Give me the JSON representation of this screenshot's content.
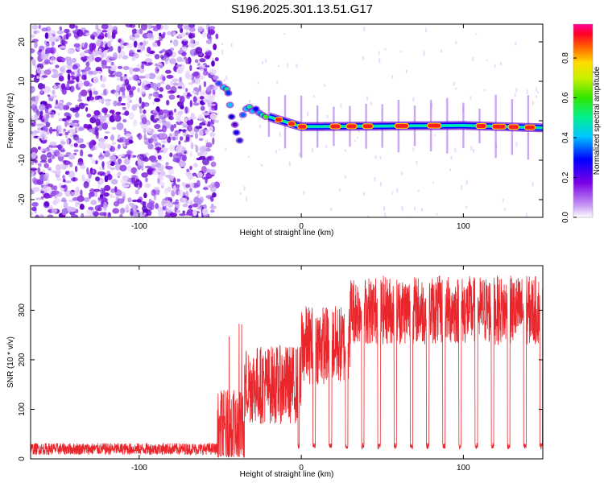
{
  "title": "S196.2025.301.13.51.G17",
  "chart_data": [
    {
      "type": "heatmap",
      "name": "spectrogram",
      "xlabel": "Height of straight line (km)",
      "ylabel": "Frequency (Hz)",
      "xlim": [
        -167,
        149
      ],
      "ylim": [
        -24.5,
        24.5
      ],
      "xticks": [
        -100,
        0,
        100
      ],
      "yticks": [
        -20,
        -10,
        0,
        10,
        20
      ],
      "xtick_labels": [
        "-100",
        "0",
        "100"
      ],
      "ytick_labels": [
        "-20",
        "-10",
        "0",
        "10",
        "20"
      ],
      "colorbar": {
        "label": "Normalized spectral amplitude",
        "range": [
          0,
          0.97
        ],
        "ticks": [
          0.0,
          0.2,
          0.4,
          0.6,
          0.8
        ],
        "tick_labels": [
          "0.0",
          "0.2",
          "0.4",
          "0.6",
          "0.8"
        ],
        "colormap": "rainbow (white-violet-blue-cyan-green-yellow-red-magenta)"
      },
      "features": {
        "noise_region_x": [
          -167,
          -52
        ],
        "transition_x": [
          -52,
          -20
        ],
        "transition_freq_start": 9,
        "transition_freq_end": 1,
        "line_x": [
          -20,
          149
        ],
        "line_freq": [
          [
            -20,
            1
          ],
          [
            0,
            -1.5
          ],
          [
            100,
            -1.2
          ],
          [
            149,
            -1.8
          ]
        ],
        "bright_segments_x": [
          [
            -16,
            -12
          ],
          [
            -8,
            -4
          ],
          [
            -2,
            3
          ],
          [
            18,
            24
          ],
          [
            28,
            34
          ],
          [
            38,
            44
          ],
          [
            58,
            66
          ],
          [
            78,
            86
          ],
          [
            108,
            114
          ],
          [
            118,
            126
          ],
          [
            128,
            134
          ],
          [
            138,
            144
          ]
        ],
        "vertical_spike_period_km": 10
      }
    },
    {
      "type": "line",
      "name": "snr",
      "color": "#e8262b",
      "xlabel": "Height of straight line (km)",
      "ylabel": "SNR (10 * v/v)",
      "xlim": [
        -167,
        149
      ],
      "ylim": [
        0,
        390
      ],
      "xticks": [
        -100,
        0,
        100
      ],
      "yticks": [
        0,
        100,
        200,
        300
      ],
      "xtick_labels": [
        "-100",
        "0",
        "100"
      ],
      "ytick_labels": [
        "0",
        "100",
        "200",
        "300"
      ],
      "segments": [
        {
          "x": [
            -167,
            -52
          ],
          "level": 20,
          "noise": 12
        },
        {
          "x": [
            -52,
            -35
          ],
          "level": 60,
          "noise": 80,
          "max": 285
        },
        {
          "x": [
            -35,
            0
          ],
          "level": 150,
          "noise": 80
        },
        {
          "x": [
            0,
            30
          ],
          "level": 230,
          "noise": 80
        },
        {
          "x": [
            30,
            149
          ],
          "level": 300,
          "noise": 70,
          "max": 385
        }
      ],
      "dropouts_to": 20,
      "dropout_period_km": 10
    }
  ]
}
